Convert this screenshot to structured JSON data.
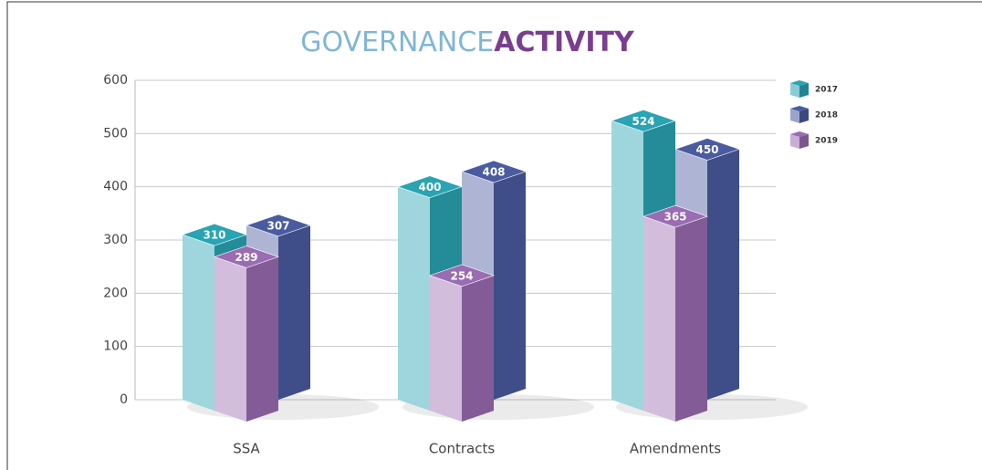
{
  "chart_data": {
    "type": "bar3d",
    "title": "GOVERNANCE",
    "title_highlight": "ACTIVITY",
    "categories": [
      "SSA",
      "Contracts",
      "Amendments"
    ],
    "series": [
      {
        "name": "2017",
        "color": "#2aa3b3",
        "values": [
          310,
          400,
          524
        ]
      },
      {
        "name": "2018",
        "color": "#4a5ba0",
        "values": [
          307,
          408,
          450
        ]
      },
      {
        "name": "2019",
        "color": "#9a6cb2",
        "values": [
          289,
          254,
          365
        ]
      }
    ],
    "ylim": [
      0,
      600
    ],
    "yticks": [
      0,
      100,
      200,
      300,
      400,
      500,
      600
    ],
    "grid": true,
    "legend": "top-right"
  }
}
